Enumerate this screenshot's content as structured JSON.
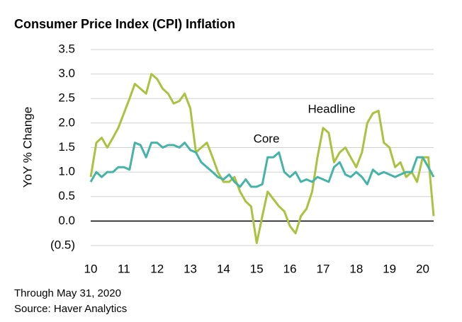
{
  "chart_data": {
    "type": "line",
    "title": "Consumer Price Index (CPI) Inflation",
    "ylabel": "YoY % Change",
    "footnotes": [
      "Through May 31, 2020",
      "Source: Haver Analytics"
    ],
    "x": [
      10.0,
      10.17,
      10.33,
      10.5,
      10.67,
      10.83,
      11.0,
      11.17,
      11.33,
      11.5,
      11.67,
      11.83,
      12.0,
      12.17,
      12.33,
      12.5,
      12.67,
      12.83,
      13.0,
      13.17,
      13.33,
      13.5,
      13.67,
      13.83,
      14.0,
      14.17,
      14.33,
      14.5,
      14.67,
      14.83,
      15.0,
      15.17,
      15.33,
      15.5,
      15.67,
      15.83,
      16.0,
      16.17,
      16.33,
      16.5,
      16.67,
      16.83,
      17.0,
      17.17,
      17.33,
      17.5,
      17.67,
      17.83,
      18.0,
      18.17,
      18.33,
      18.5,
      18.67,
      18.83,
      19.0,
      19.17,
      19.33,
      19.5,
      19.67,
      19.83,
      20.0,
      20.17,
      20.33
    ],
    "series": [
      {
        "name": "Headline",
        "color": "#a9c23f",
        "values": [
          0.9,
          1.6,
          1.7,
          1.5,
          1.7,
          1.9,
          2.2,
          2.5,
          2.8,
          2.7,
          2.6,
          3.0,
          2.9,
          2.7,
          2.6,
          2.4,
          2.45,
          2.6,
          2.3,
          1.4,
          1.5,
          1.6,
          1.3,
          1.0,
          0.8,
          0.8,
          0.9,
          0.6,
          0.4,
          0.3,
          -0.45,
          0.1,
          0.6,
          0.45,
          0.3,
          0.2,
          -0.1,
          -0.25,
          0.1,
          0.25,
          0.6,
          1.3,
          1.9,
          1.8,
          1.2,
          1.4,
          1.5,
          1.3,
          1.1,
          1.4,
          2.0,
          2.2,
          2.25,
          1.6,
          1.5,
          1.1,
          1.2,
          0.9,
          1.0,
          0.8,
          1.3,
          1.3,
          0.1
        ]
      },
      {
        "name": "Core",
        "color": "#45b3a6",
        "values": [
          0.8,
          1.0,
          0.9,
          1.0,
          1.0,
          1.1,
          1.1,
          1.05,
          1.6,
          1.55,
          1.3,
          1.6,
          1.6,
          1.5,
          1.55,
          1.55,
          1.5,
          1.6,
          1.45,
          1.4,
          1.2,
          1.1,
          1.0,
          0.9,
          0.85,
          0.95,
          0.8,
          0.7,
          0.85,
          0.7,
          0.7,
          0.75,
          1.3,
          1.3,
          1.4,
          1.0,
          0.9,
          1.0,
          0.8,
          0.85,
          0.8,
          0.9,
          0.85,
          0.8,
          1.1,
          1.2,
          0.95,
          0.9,
          1.0,
          0.9,
          0.75,
          1.05,
          0.95,
          1.0,
          0.95,
          0.9,
          0.95,
          1.0,
          1.0,
          1.3,
          1.3,
          1.1,
          0.9
        ]
      }
    ],
    "xlim": [
      10,
      20.33
    ],
    "xticks": [
      10,
      11,
      12,
      13,
      14,
      15,
      16,
      17,
      18,
      19,
      20
    ],
    "ylim": [
      -0.5,
      3.5
    ],
    "yticks": [
      {
        "value": -0.5,
        "label": "(0.5)"
      },
      {
        "value": 0,
        "label": "0.0"
      },
      {
        "value": 0.5,
        "label": "0.5"
      },
      {
        "value": 1,
        "label": "1.0"
      },
      {
        "value": 1.5,
        "label": "1.5"
      },
      {
        "value": 2,
        "label": "2.0"
      },
      {
        "value": 2.5,
        "label": "2.5"
      },
      {
        "value": 3,
        "label": "3.0"
      },
      {
        "value": 3.5,
        "label": "3.5"
      }
    ],
    "grid": true
  }
}
